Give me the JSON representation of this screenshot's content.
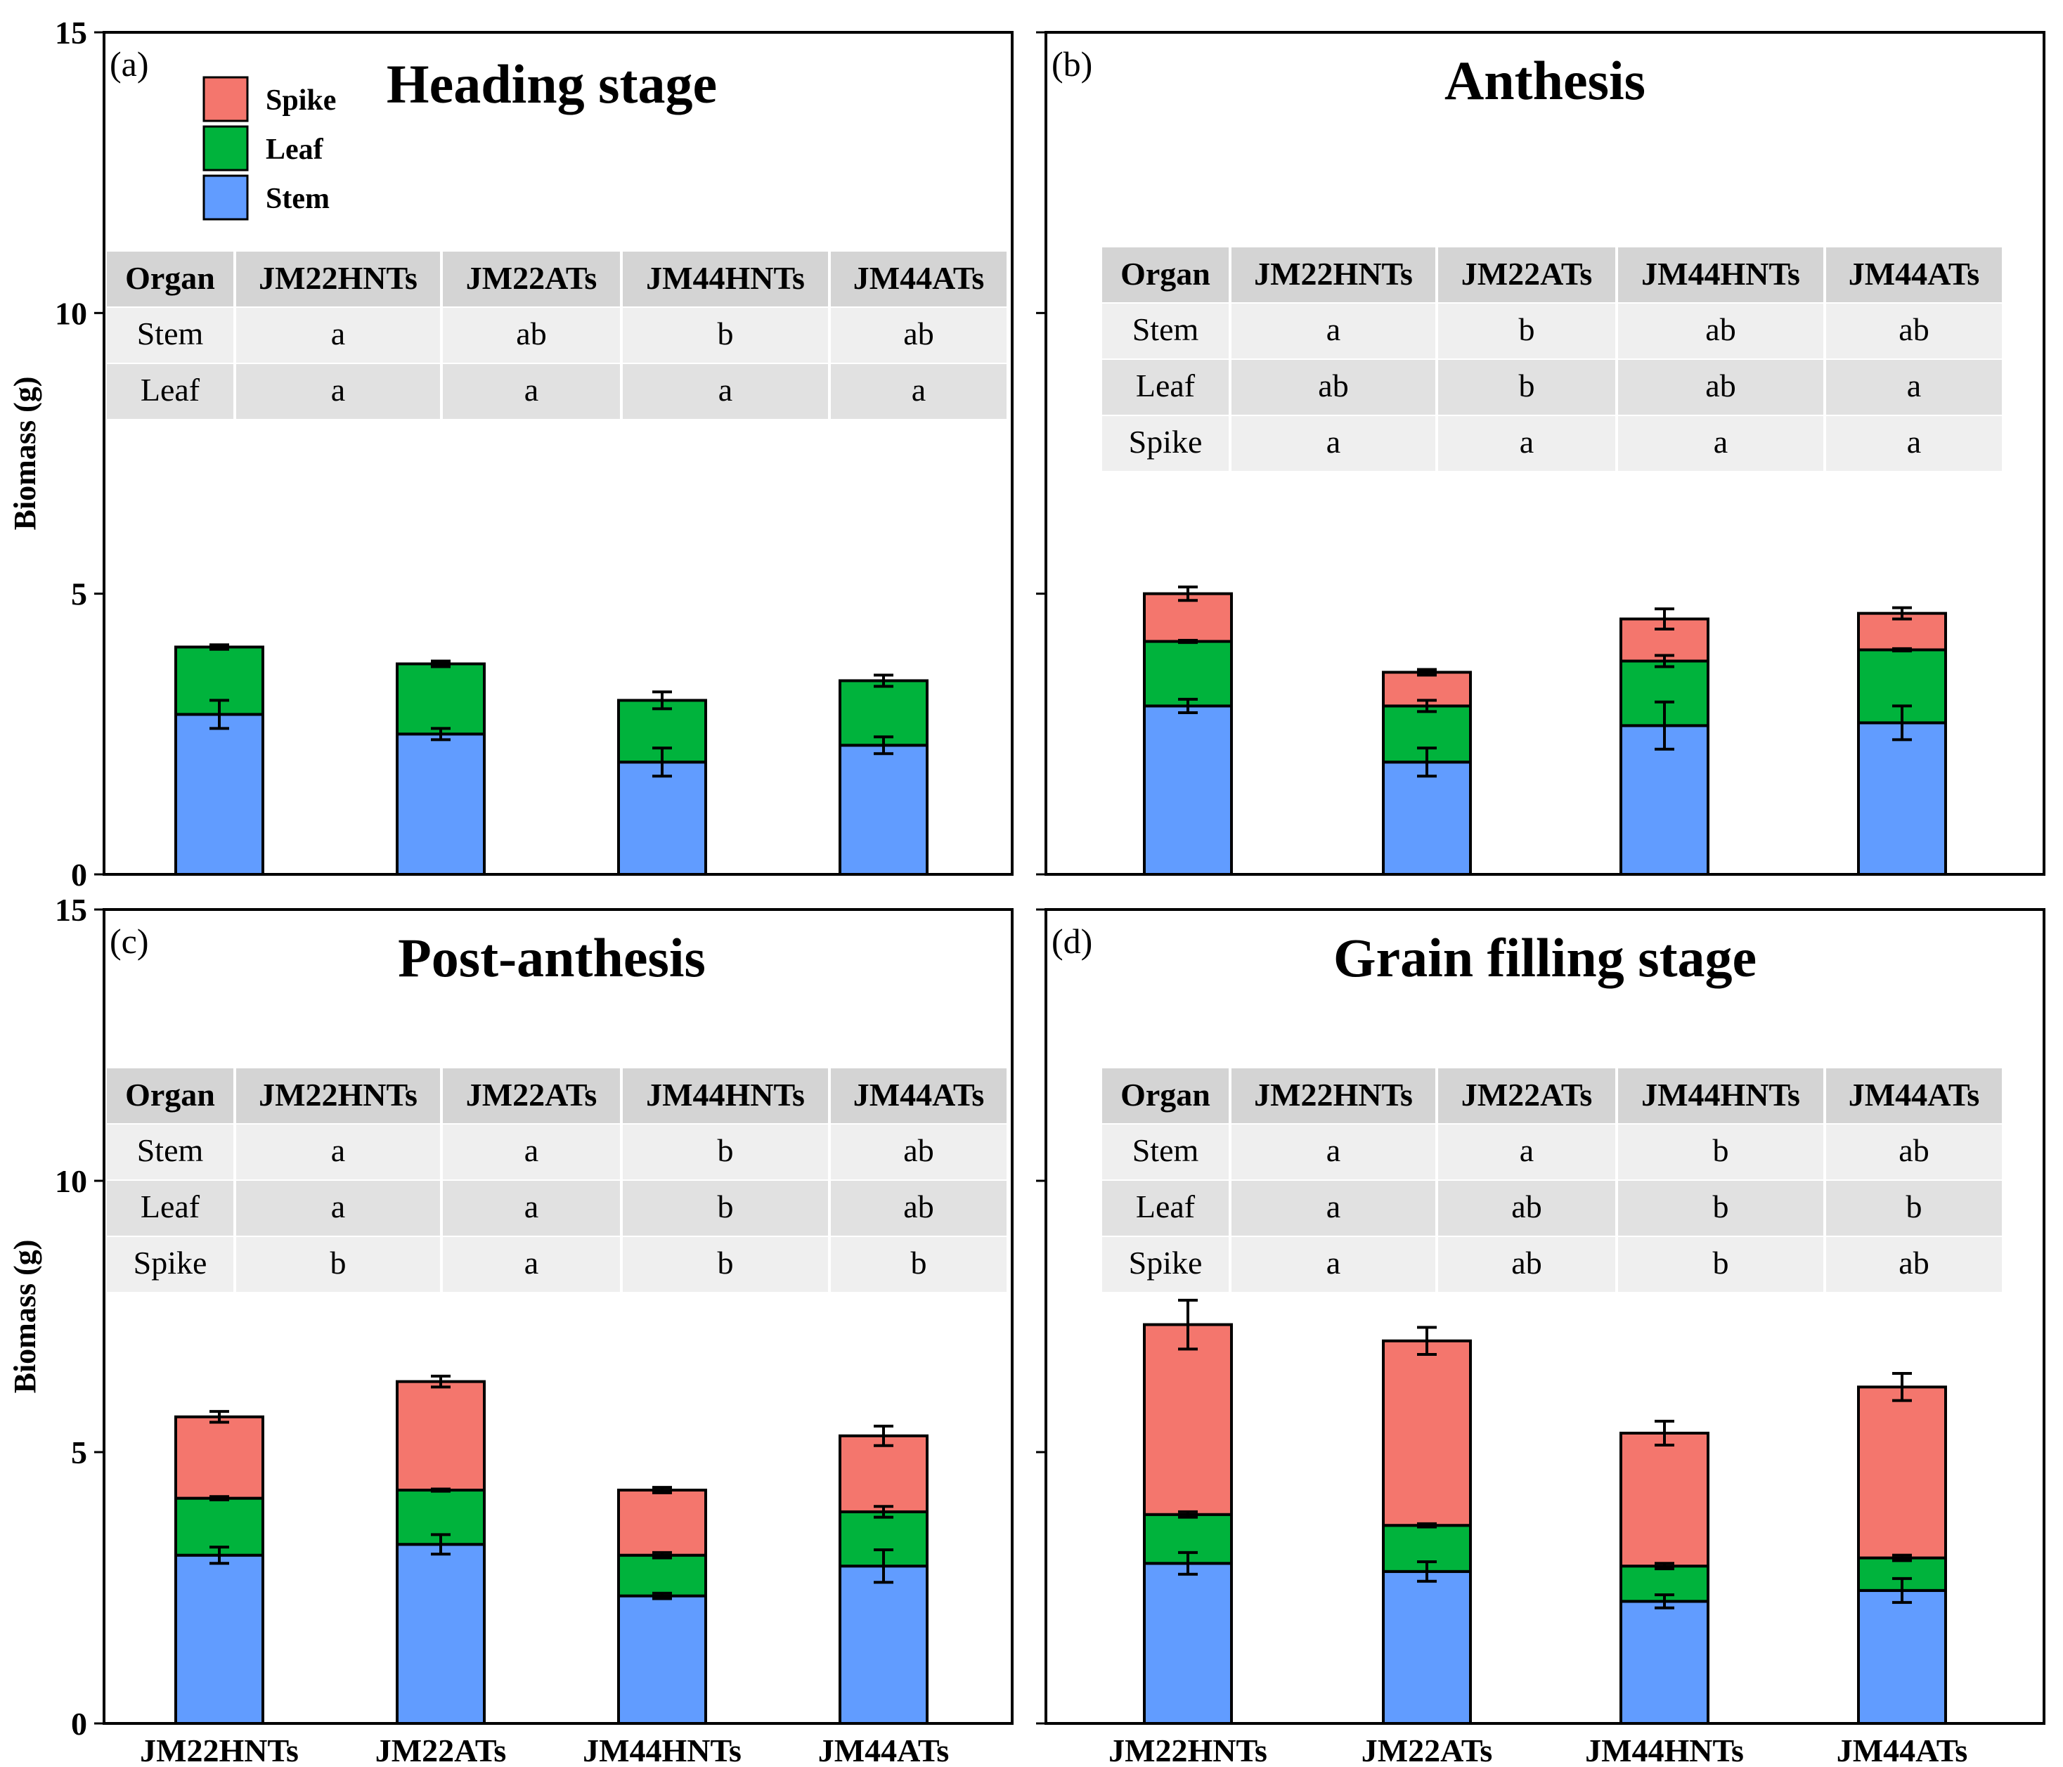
{
  "figure": {
    "ylabel": "Biomass (g)",
    "categories": [
      "JM22HNTs",
      "JM22ATs",
      "JM44HNTs",
      "JM44ATs"
    ],
    "legend": [
      {
        "name": "Spike",
        "color": "#f4766d"
      },
      {
        "name": "Leaf",
        "color": "#00b33c"
      },
      {
        "name": "Stem",
        "color": "#619cff"
      }
    ],
    "table_header": "Organ"
  },
  "chart_data": [
    {
      "type": "bar",
      "stacked": true,
      "panel_label": "(a)",
      "title": "Heading stage",
      "ylabel": "Biomass (g)",
      "ylim": [
        0,
        15
      ],
      "yticks": [
        0,
        5,
        10,
        15
      ],
      "categories": [
        "JM22HNTs",
        "JM22ATs",
        "JM44HNTs",
        "JM44ATs"
      ],
      "series": [
        {
          "name": "Stem",
          "color": "#619cff",
          "values": [
            2.85,
            2.5,
            2.0,
            2.3
          ],
          "errors": [
            0.25,
            0.1,
            0.25,
            0.15
          ]
        },
        {
          "name": "Leaf",
          "color": "#00b33c",
          "values": [
            1.2,
            1.25,
            1.1,
            1.15
          ],
          "errors": [
            0.04,
            0.05,
            0.15,
            0.1
          ]
        },
        {
          "name": "Spike",
          "color": "#f4766d",
          "values": [
            0,
            0,
            0,
            0
          ],
          "errors": [
            0,
            0,
            0,
            0
          ]
        }
      ],
      "significance": {
        "columns": [
          "JM22HNTs",
          "JM22ATs",
          "JM44HNTs",
          "JM44ATs"
        ],
        "rows": [
          {
            "organ": "Stem",
            "letters": [
              "a",
              "ab",
              "b",
              "ab"
            ]
          },
          {
            "organ": "Leaf",
            "letters": [
              "a",
              "a",
              "a",
              "a"
            ]
          }
        ]
      }
    },
    {
      "type": "bar",
      "stacked": true,
      "panel_label": "(b)",
      "title": "Anthesis",
      "ylabel": "Biomass (g)",
      "ylim": [
        0,
        15
      ],
      "yticks": [
        0,
        5,
        10,
        15
      ],
      "categories": [
        "JM22HNTs",
        "JM22ATs",
        "JM44HNTs",
        "JM44ATs"
      ],
      "series": [
        {
          "name": "Stem",
          "color": "#619cff",
          "values": [
            3.0,
            2.0,
            2.65,
            2.7
          ],
          "errors": [
            0.12,
            0.25,
            0.42,
            0.3
          ]
        },
        {
          "name": "Leaf",
          "color": "#00b33c",
          "values": [
            1.15,
            1.0,
            1.15,
            1.3
          ],
          "errors": [
            0.02,
            0.1,
            0.1,
            0.02
          ]
        },
        {
          "name": "Spike",
          "color": "#f4766d",
          "values": [
            0.85,
            0.6,
            0.75,
            0.65
          ],
          "errors": [
            0.12,
            0.05,
            0.18,
            0.1
          ]
        }
      ],
      "significance": {
        "columns": [
          "JM22HNTs",
          "JM22ATs",
          "JM44HNTs",
          "JM44ATs"
        ],
        "rows": [
          {
            "organ": "Stem",
            "letters": [
              "a",
              "b",
              "ab",
              "ab"
            ]
          },
          {
            "organ": "Leaf",
            "letters": [
              "ab",
              "b",
              "ab",
              "a"
            ]
          },
          {
            "organ": "Spike",
            "letters": [
              "a",
              "a",
              "a",
              "a"
            ]
          }
        ]
      }
    },
    {
      "type": "bar",
      "stacked": true,
      "panel_label": "(c)",
      "title": "Post-anthesis",
      "ylabel": "Biomass (g)",
      "ylim": [
        0,
        15
      ],
      "yticks": [
        0,
        5,
        10,
        15
      ],
      "categories": [
        "JM22HNTs",
        "JM22ATs",
        "JM44HNTs",
        "JM44ATs"
      ],
      "series": [
        {
          "name": "Stem",
          "color": "#619cff",
          "values": [
            3.1,
            3.3,
            2.35,
            2.9
          ],
          "errors": [
            0.15,
            0.18,
            0.05,
            0.3
          ]
        },
        {
          "name": "Leaf",
          "color": "#00b33c",
          "values": [
            1.05,
            1.0,
            0.75,
            1.0
          ],
          "errors": [
            0.03,
            0.02,
            0.05,
            0.1
          ]
        },
        {
          "name": "Spike",
          "color": "#f4766d",
          "values": [
            1.5,
            2.0,
            1.2,
            1.4
          ],
          "errors": [
            0.1,
            0.1,
            0.05,
            0.18
          ]
        }
      ],
      "significance": {
        "columns": [
          "JM22HNTs",
          "JM22ATs",
          "JM44HNTs",
          "JM44ATs"
        ],
        "rows": [
          {
            "organ": "Stem",
            "letters": [
              "a",
              "a",
              "b",
              "ab"
            ]
          },
          {
            "organ": "Leaf",
            "letters": [
              "a",
              "a",
              "b",
              "ab"
            ]
          },
          {
            "organ": "Spike",
            "letters": [
              "b",
              "a",
              "b",
              "b"
            ]
          }
        ]
      }
    },
    {
      "type": "bar",
      "stacked": true,
      "panel_label": "(d)",
      "title": "Grain filling stage",
      "ylabel": "Biomass (g)",
      "ylim": [
        0,
        15
      ],
      "yticks": [
        0,
        5,
        10,
        15
      ],
      "categories": [
        "JM22HNTs",
        "JM22ATs",
        "JM44HNTs",
        "JM44ATs"
      ],
      "series": [
        {
          "name": "Stem",
          "color": "#619cff",
          "values": [
            2.95,
            2.8,
            2.25,
            2.45
          ],
          "errors": [
            0.2,
            0.18,
            0.12,
            0.22
          ]
        },
        {
          "name": "Leaf",
          "color": "#00b33c",
          "values": [
            0.9,
            0.85,
            0.65,
            0.6
          ],
          "errors": [
            0.05,
            0.03,
            0.05,
            0.05
          ]
        },
        {
          "name": "Spike",
          "color": "#f4766d",
          "values": [
            3.5,
            3.4,
            2.45,
            3.15
          ],
          "errors": [
            0.45,
            0.25,
            0.22,
            0.25
          ]
        }
      ],
      "significance": {
        "columns": [
          "JM22HNTs",
          "JM22ATs",
          "JM44HNTs",
          "JM44ATs"
        ],
        "rows": [
          {
            "organ": "Stem",
            "letters": [
              "a",
              "a",
              "b",
              "ab"
            ]
          },
          {
            "organ": "Leaf",
            "letters": [
              "a",
              "ab",
              "b",
              "b"
            ]
          },
          {
            "organ": "Spike",
            "letters": [
              "a",
              "ab",
              "b",
              "ab"
            ]
          }
        ]
      }
    }
  ]
}
